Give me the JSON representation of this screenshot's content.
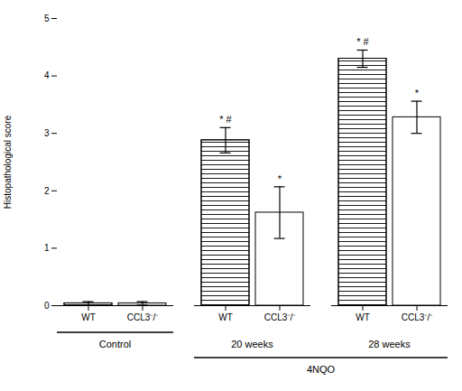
{
  "chart_data": {
    "type": "bar",
    "categories": [
      "Control",
      "20 weeks",
      "28 weeks"
    ],
    "series": [
      {
        "name": "WT",
        "color": "#ffffff",
        "values": [
          0.04,
          2.88,
          4.3
        ],
        "errors": [
          0.03,
          0.22,
          0.15
        ],
        "annotations": [
          null,
          "* #",
          "* #"
        ]
      },
      {
        "name": "CCL3⁻/⁻",
        "color": "#ffffff",
        "values": [
          0.04,
          1.62,
          3.28
        ],
        "errors": [
          0.03,
          0.45,
          0.28
        ],
        "annotations": [
          null,
          "*",
          "*"
        ]
      }
    ],
    "group_spans": [
      {
        "label": "4NQO",
        "categories": [
          "20 weeks",
          "28 weeks"
        ]
      }
    ],
    "ylabel": "Histopathological score",
    "ylim": [
      0,
      5
    ],
    "yticks": [
      0,
      1,
      2,
      3,
      4,
      5
    ],
    "grid": false
  }
}
